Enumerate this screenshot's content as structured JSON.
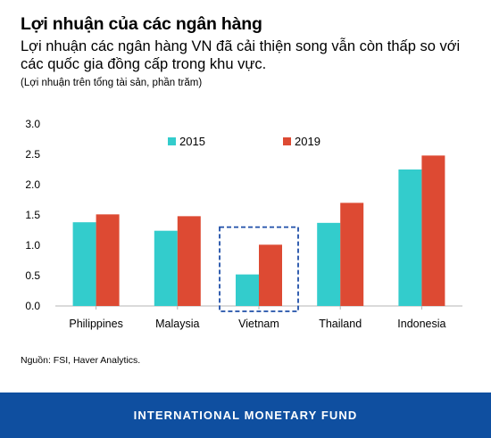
{
  "header": {
    "title": "Lợi nhuận của các ngân hàng",
    "subtitle": "Lợi nhuận các ngân hàng VN đã cải thiện song vẫn còn thấp so với các quốc gia đồng cấp trong khu vực.",
    "note": "(Lợi nhuận trên tổng tài sản, phần trăm)"
  },
  "chart_data": {
    "type": "bar",
    "categories": [
      "Philippines",
      "Malaysia",
      "Vietnam",
      "Thailand",
      "Indonesia"
    ],
    "series": [
      {
        "name": "2015",
        "color": "#33cccc",
        "values": [
          1.38,
          1.24,
          0.52,
          1.37,
          2.25
        ]
      },
      {
        "name": "2019",
        "color": "#dd4a33",
        "values": [
          1.51,
          1.48,
          1.01,
          1.7,
          2.48
        ]
      }
    ],
    "ylim": [
      0,
      3.0
    ],
    "yticks": [
      "0.0",
      "0.5",
      "1.0",
      "1.5",
      "2.0",
      "2.5",
      "3.0"
    ],
    "legend_position": "top-center",
    "highlight_category": "Vietnam",
    "highlight_color": "#1f4fa8"
  },
  "source": "Nguồn: FSI, Haver Analytics.",
  "footer": {
    "label": "INTERNATIONAL MONETARY FUND",
    "color": "#0f4fa0"
  }
}
